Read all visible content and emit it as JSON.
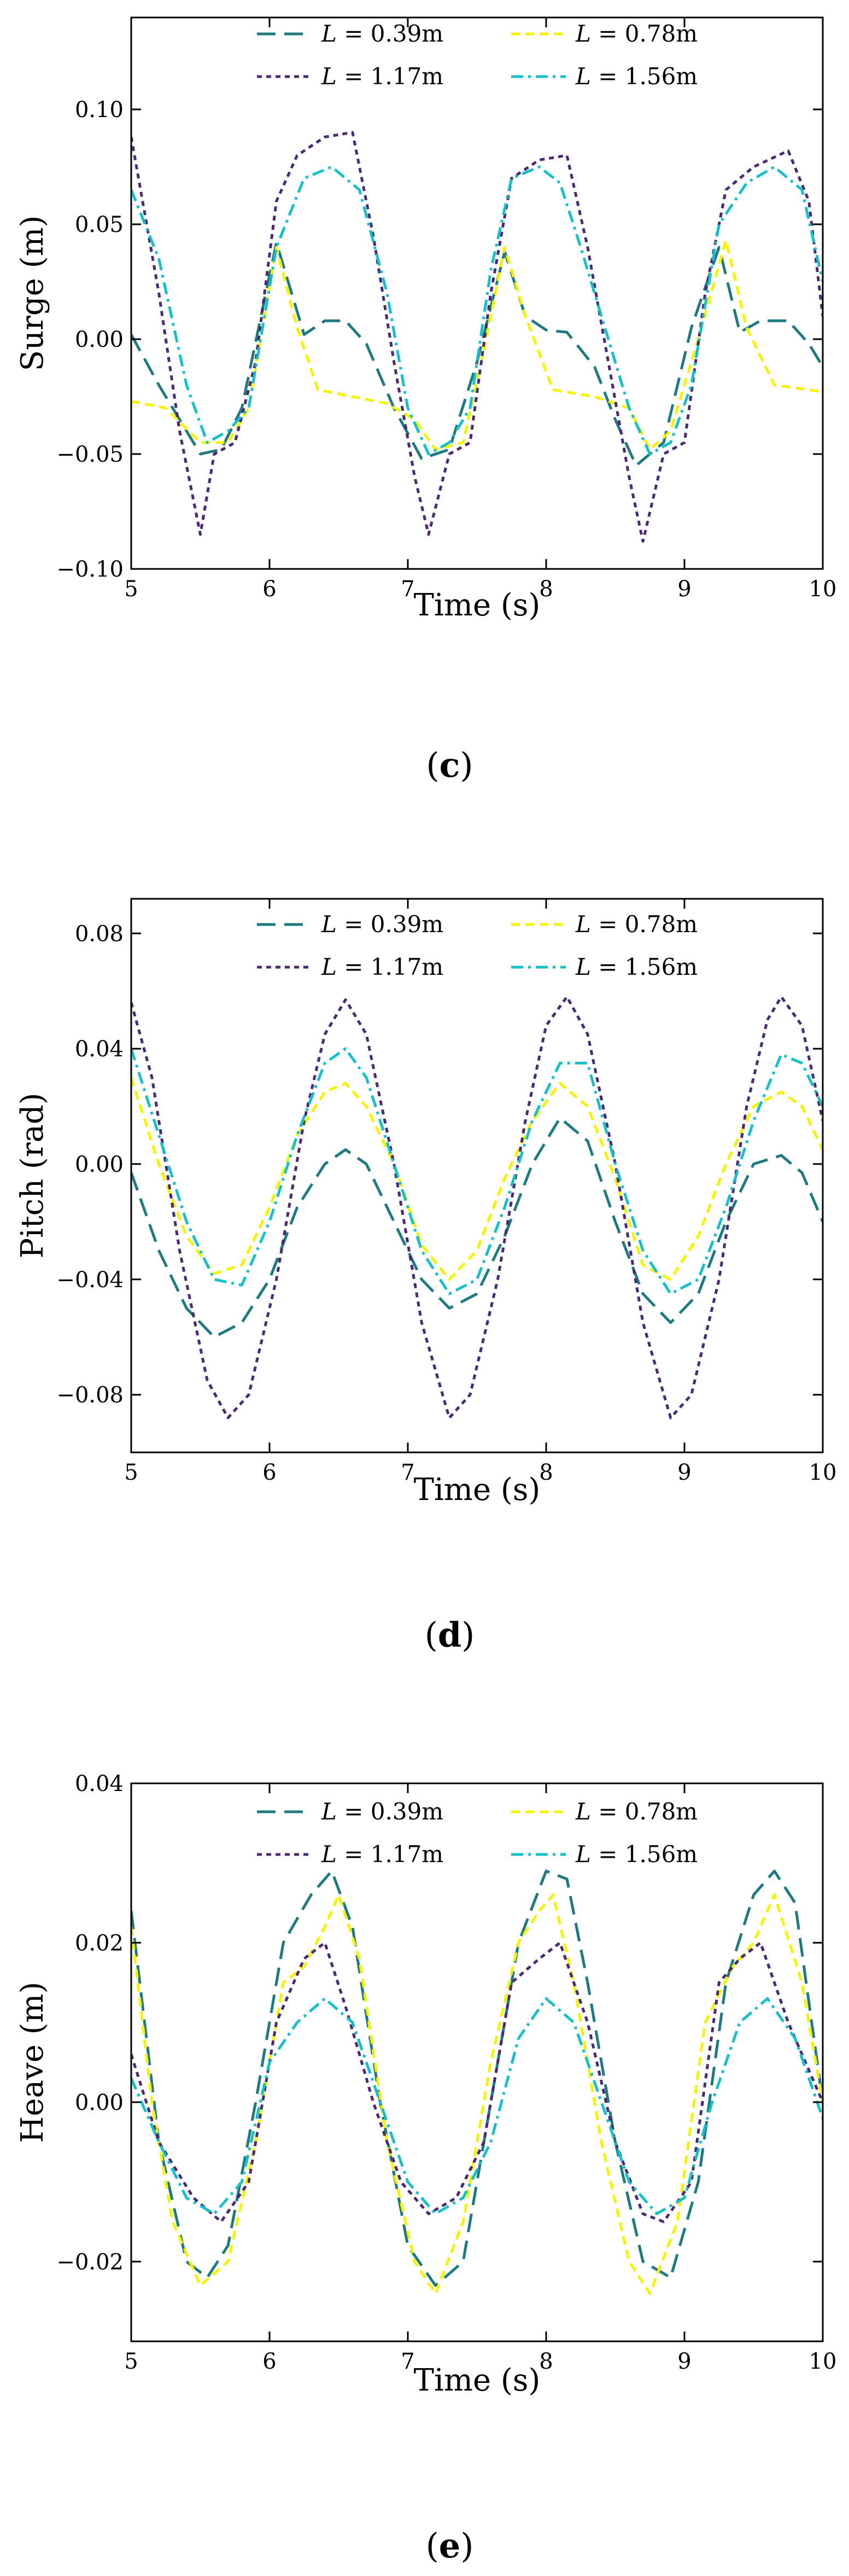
{
  "chart_data": [
    {
      "type": "line",
      "panel_label": "c",
      "caption_open": "(",
      "caption_close": ")",
      "xlabel": "Time (s)",
      "ylabel": "Surge (m)",
      "xlim": [
        5,
        10
      ],
      "ylim": [
        -0.1,
        0.14
      ],
      "xticks": [
        5,
        6,
        7,
        8,
        9,
        10
      ],
      "xtick_labels": [
        "5",
        "6",
        "7",
        "8",
        "9",
        "10"
      ],
      "yticks": [
        -0.1,
        -0.05,
        0,
        0.05,
        0.1
      ],
      "ytick_labels": [
        "−0.10",
        "−0.05",
        "0.00",
        "0.05",
        "0.10"
      ],
      "grid": false,
      "legend_position": "top-center",
      "series": [
        {
          "name": "L = 0.39m",
          "name_var": "L",
          "name_rest": " = 0.39m",
          "color": "#1f7a80",
          "dash": "long-dash",
          "x": [
            5.0,
            5.2,
            5.5,
            5.65,
            5.8,
            6.05,
            6.25,
            6.4,
            6.55,
            6.7,
            6.9,
            7.1,
            7.3,
            7.5,
            7.7,
            7.85,
            8.0,
            8.15,
            8.35,
            8.5,
            8.65,
            8.85,
            9.05,
            9.25,
            9.4,
            9.55,
            9.75,
            9.9,
            10.0
          ],
          "y": [
            0.002,
            -0.02,
            -0.05,
            -0.048,
            -0.03,
            0.042,
            0.002,
            0.008,
            0.008,
            -0.002,
            -0.03,
            -0.052,
            -0.048,
            -0.01,
            0.038,
            0.01,
            0.004,
            0.003,
            -0.012,
            -0.035,
            -0.055,
            -0.045,
            0.005,
            0.04,
            0.003,
            0.008,
            0.008,
            -0.002,
            -0.012
          ]
        },
        {
          "name": "L = 0.78m",
          "name_var": "L",
          "name_rest": " = 0.78m",
          "color": "#f4f400",
          "dash": "dash",
          "x": [
            5.0,
            5.25,
            5.5,
            5.7,
            5.85,
            6.05,
            6.2,
            6.35,
            6.6,
            6.85,
            7.05,
            7.2,
            7.4,
            7.55,
            7.7,
            7.85,
            8.05,
            8.35,
            8.6,
            8.75,
            8.9,
            9.1,
            9.3,
            9.45,
            9.65,
            9.9,
            10.0
          ],
          "y": [
            -0.027,
            -0.03,
            -0.045,
            -0.045,
            -0.03,
            0.04,
            0.005,
            -0.022,
            -0.025,
            -0.028,
            -0.035,
            -0.048,
            -0.045,
            -0.005,
            0.04,
            0.01,
            -0.022,
            -0.025,
            -0.03,
            -0.048,
            -0.04,
            0.0,
            0.043,
            0.005,
            -0.02,
            -0.022,
            -0.023
          ]
        },
        {
          "name": "L = 1.17m",
          "name_var": "L",
          "name_rest": " = 1.17m",
          "color": "#4a2a70",
          "dash": "dot",
          "x": [
            5.0,
            5.2,
            5.35,
            5.5,
            5.6,
            5.75,
            5.9,
            6.05,
            6.2,
            6.4,
            6.6,
            6.75,
            6.9,
            7.05,
            7.15,
            7.3,
            7.45,
            7.6,
            7.75,
            7.95,
            8.15,
            8.3,
            8.45,
            8.6,
            8.7,
            8.85,
            9.0,
            9.15,
            9.3,
            9.5,
            9.75,
            9.9,
            10.0
          ],
          "y": [
            0.088,
            0.02,
            -0.04,
            -0.085,
            -0.05,
            -0.045,
            -0.01,
            0.06,
            0.08,
            0.088,
            0.09,
            0.045,
            -0.01,
            -0.06,
            -0.085,
            -0.05,
            -0.045,
            0.02,
            0.07,
            0.078,
            0.08,
            0.04,
            -0.01,
            -0.06,
            -0.088,
            -0.05,
            -0.045,
            0.02,
            0.065,
            0.075,
            0.082,
            0.06,
            0.01
          ]
        },
        {
          "name": "L = 1.56m",
          "name_var": "L",
          "name_rest": " = 1.56m",
          "color": "#17c0c8",
          "dash": "dash-dot",
          "x": [
            5.0,
            5.2,
            5.4,
            5.55,
            5.7,
            5.85,
            6.05,
            6.25,
            6.45,
            6.65,
            6.85,
            7.0,
            7.15,
            7.3,
            7.45,
            7.6,
            7.75,
            7.95,
            8.1,
            8.25,
            8.45,
            8.6,
            8.75,
            8.9,
            9.05,
            9.25,
            9.45,
            9.65,
            9.85,
            10.0
          ],
          "y": [
            0.065,
            0.035,
            -0.02,
            -0.045,
            -0.04,
            -0.03,
            0.04,
            0.07,
            0.075,
            0.065,
            0.02,
            -0.03,
            -0.05,
            -0.045,
            -0.03,
            0.03,
            0.07,
            0.075,
            0.068,
            0.04,
            0.0,
            -0.03,
            -0.05,
            -0.045,
            -0.02,
            0.05,
            0.068,
            0.075,
            0.065,
            0.025
          ]
        }
      ]
    },
    {
      "type": "line",
      "panel_label": "d",
      "caption_open": "(",
      "caption_close": ")",
      "xlabel": "Time (s)",
      "ylabel": "Pitch (rad)",
      "xlim": [
        5,
        10
      ],
      "ylim": [
        -0.1,
        0.092
      ],
      "xticks": [
        5,
        6,
        7,
        8,
        9,
        10
      ],
      "xtick_labels": [
        "5",
        "6",
        "7",
        "8",
        "9",
        "10"
      ],
      "yticks": [
        -0.08,
        -0.04,
        0,
        0.04,
        0.08
      ],
      "ytick_labels": [
        "−0.08",
        "−0.04",
        "0.00",
        "0.04",
        "0.08"
      ],
      "grid": false,
      "legend_position": "top-center",
      "series": [
        {
          "name": "L = 0.39m",
          "name_var": "L",
          "name_rest": " = 0.39m",
          "color": "#1f7a80",
          "dash": "long-dash",
          "x": [
            5.0,
            5.2,
            5.4,
            5.6,
            5.8,
            6.0,
            6.2,
            6.4,
            6.55,
            6.7,
            6.9,
            7.1,
            7.3,
            7.5,
            7.7,
            7.9,
            8.1,
            8.3,
            8.5,
            8.7,
            8.9,
            9.1,
            9.3,
            9.5,
            9.7,
            9.85,
            10.0
          ],
          "y": [
            -0.003,
            -0.03,
            -0.05,
            -0.06,
            -0.055,
            -0.04,
            -0.015,
            0.0,
            0.005,
            0.0,
            -0.02,
            -0.04,
            -0.05,
            -0.045,
            -0.025,
            0.0,
            0.016,
            0.008,
            -0.02,
            -0.045,
            -0.055,
            -0.045,
            -0.02,
            0.0,
            0.003,
            -0.003,
            -0.02
          ]
        },
        {
          "name": "L = 0.78m",
          "name_var": "L",
          "name_rest": " = 0.78m",
          "color": "#f4f400",
          "dash": "dash",
          "x": [
            5.0,
            5.2,
            5.4,
            5.6,
            5.8,
            6.0,
            6.2,
            6.4,
            6.55,
            6.7,
            6.9,
            7.1,
            7.3,
            7.5,
            7.7,
            7.9,
            8.1,
            8.3,
            8.5,
            8.7,
            8.9,
            9.1,
            9.3,
            9.5,
            9.7,
            9.85,
            10.0
          ],
          "y": [
            0.03,
            0.0,
            -0.025,
            -0.038,
            -0.035,
            -0.015,
            0.01,
            0.025,
            0.028,
            0.02,
            0.0,
            -0.028,
            -0.04,
            -0.03,
            -0.005,
            0.015,
            0.028,
            0.02,
            -0.005,
            -0.035,
            -0.04,
            -0.025,
            0.0,
            0.02,
            0.025,
            0.02,
            0.005
          ]
        },
        {
          "name": "L = 1.17m",
          "name_var": "L",
          "name_rest": " = 1.17m",
          "color": "#4a2a70",
          "dash": "dot",
          "x": [
            5.0,
            5.15,
            5.35,
            5.55,
            5.7,
            5.85,
            6.05,
            6.25,
            6.4,
            6.55,
            6.7,
            6.9,
            7.1,
            7.3,
            7.45,
            7.65,
            7.85,
            8.0,
            8.15,
            8.3,
            8.5,
            8.7,
            8.9,
            9.05,
            9.25,
            9.45,
            9.6,
            9.7,
            9.85,
            10.0
          ],
          "y": [
            0.056,
            0.03,
            -0.03,
            -0.075,
            -0.088,
            -0.08,
            -0.04,
            0.015,
            0.045,
            0.057,
            0.045,
            0.0,
            -0.055,
            -0.088,
            -0.08,
            -0.04,
            0.015,
            0.048,
            0.058,
            0.045,
            0.0,
            -0.055,
            -0.088,
            -0.08,
            -0.04,
            0.02,
            0.05,
            0.058,
            0.048,
            0.015
          ]
        },
        {
          "name": "L = 1.56m",
          "name_var": "L",
          "name_rest": " = 1.56m",
          "color": "#17c0c8",
          "dash": "dash-dot",
          "x": [
            5.0,
            5.2,
            5.4,
            5.6,
            5.8,
            6.0,
            6.2,
            6.4,
            6.55,
            6.7,
            6.9,
            7.1,
            7.3,
            7.5,
            7.7,
            7.9,
            8.1,
            8.3,
            8.5,
            8.7,
            8.9,
            9.1,
            9.3,
            9.5,
            9.7,
            9.85,
            10.0
          ],
          "y": [
            0.04,
            0.01,
            -0.02,
            -0.04,
            -0.042,
            -0.02,
            0.01,
            0.035,
            0.04,
            0.03,
            0.0,
            -0.03,
            -0.045,
            -0.04,
            -0.015,
            0.015,
            0.035,
            0.035,
            0.0,
            -0.03,
            -0.045,
            -0.04,
            -0.015,
            0.015,
            0.038,
            0.035,
            0.02
          ]
        }
      ]
    },
    {
      "type": "line",
      "panel_label": "e",
      "caption_open": "(",
      "caption_close": ")",
      "xlabel": "Time (s)",
      "ylabel": "Heave (m)",
      "xlim": [
        5,
        10
      ],
      "ylim": [
        -0.03,
        0.04
      ],
      "xticks": [
        5,
        6,
        7,
        8,
        9,
        10
      ],
      "xtick_labels": [
        "5",
        "6",
        "7",
        "8",
        "9",
        "10"
      ],
      "yticks": [
        -0.02,
        0,
        0.02,
        0.04
      ],
      "ytick_labels": [
        "−0.02",
        "0.00",
        "0.02",
        "0.04"
      ],
      "grid": false,
      "legend_position": "top-center",
      "series": [
        {
          "name": "L = 0.39m",
          "name_var": "L",
          "name_rest": " = 0.39m",
          "color": "#1f7a80",
          "dash": "long-dash",
          "x": [
            5.0,
            5.2,
            5.4,
            5.55,
            5.7,
            5.9,
            6.1,
            6.3,
            6.45,
            6.6,
            6.8,
            7.0,
            7.2,
            7.4,
            7.6,
            7.8,
            8.0,
            8.15,
            8.3,
            8.5,
            8.7,
            8.9,
            9.1,
            9.3,
            9.5,
            9.65,
            9.8,
            10.0
          ],
          "y": [
            0.024,
            -0.005,
            -0.02,
            -0.022,
            -0.018,
            0.0,
            0.02,
            0.026,
            0.029,
            0.022,
            0.0,
            -0.018,
            -0.023,
            -0.02,
            0.0,
            0.02,
            0.029,
            0.028,
            0.015,
            -0.005,
            -0.02,
            -0.022,
            -0.01,
            0.015,
            0.026,
            0.029,
            0.025,
            0.0
          ]
        },
        {
          "name": "L = 0.78m",
          "name_var": "L",
          "name_rest": " = 0.78m",
          "color": "#f4f400",
          "dash": "dash",
          "x": [
            5.0,
            5.15,
            5.3,
            5.5,
            5.7,
            5.9,
            6.1,
            6.25,
            6.4,
            6.5,
            6.65,
            6.85,
            7.05,
            7.2,
            7.4,
            7.6,
            7.8,
            7.95,
            8.05,
            8.2,
            8.4,
            8.6,
            8.75,
            8.95,
            9.15,
            9.35,
            9.5,
            9.65,
            9.85,
            10.0
          ],
          "y": [
            0.022,
            0.0,
            -0.015,
            -0.023,
            -0.02,
            -0.005,
            0.015,
            0.017,
            0.022,
            0.026,
            0.018,
            -0.005,
            -0.02,
            -0.024,
            -0.015,
            0.005,
            0.02,
            0.024,
            0.026,
            0.015,
            -0.005,
            -0.02,
            -0.024,
            -0.015,
            0.01,
            0.017,
            0.02,
            0.026,
            0.015,
            0.0
          ]
        },
        {
          "name": "L = 1.17m",
          "name_var": "L",
          "name_rest": " = 1.17m",
          "color": "#4a2a70",
          "dash": "dot",
          "x": [
            5.0,
            5.2,
            5.45,
            5.65,
            5.85,
            6.05,
            6.25,
            6.4,
            6.55,
            6.75,
            6.95,
            7.15,
            7.35,
            7.55,
            7.75,
            7.95,
            8.1,
            8.3,
            8.5,
            8.7,
            8.85,
            9.05,
            9.25,
            9.4,
            9.55,
            9.75,
            10.0
          ],
          "y": [
            0.006,
            -0.005,
            -0.012,
            -0.015,
            -0.01,
            0.01,
            0.018,
            0.02,
            0.012,
            0.0,
            -0.01,
            -0.014,
            -0.012,
            -0.005,
            0.015,
            0.018,
            0.02,
            0.01,
            -0.005,
            -0.014,
            -0.015,
            -0.01,
            0.015,
            0.018,
            0.02,
            0.01,
            0.0
          ]
        },
        {
          "name": "L = 1.56m",
          "name_var": "L",
          "name_rest": " = 1.56m",
          "color": "#17c0c8",
          "dash": "dash-dot",
          "x": [
            5.0,
            5.2,
            5.4,
            5.6,
            5.8,
            6.0,
            6.2,
            6.4,
            6.6,
            6.8,
            7.0,
            7.2,
            7.4,
            7.6,
            7.8,
            8.0,
            8.2,
            8.4,
            8.6,
            8.8,
            9.0,
            9.2,
            9.4,
            9.6,
            9.8,
            10.0
          ],
          "y": [
            0.003,
            -0.005,
            -0.012,
            -0.014,
            -0.01,
            0.005,
            0.01,
            0.013,
            0.01,
            0.0,
            -0.01,
            -0.014,
            -0.012,
            -0.005,
            0.008,
            0.013,
            0.01,
            0.0,
            -0.01,
            -0.014,
            -0.012,
            0.0,
            0.01,
            0.013,
            0.008,
            -0.002
          ]
        }
      ]
    }
  ]
}
